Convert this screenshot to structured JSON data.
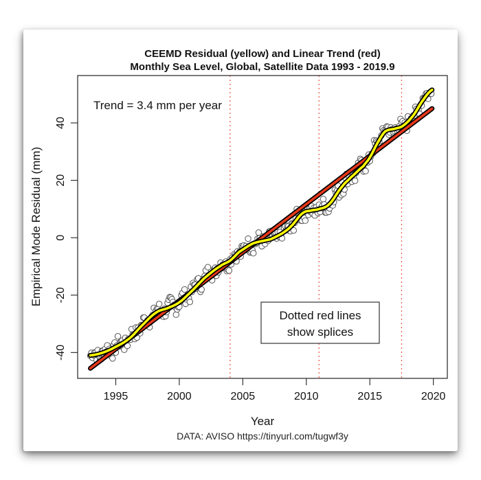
{
  "chart_data": {
    "type": "line",
    "title": "CEEMD Residual (yellow) and Linear Trend (red)",
    "subtitle": "Monthly Sea Level, Global, Satellite Data 1993 - 2019.9",
    "xlabel": "Year",
    "ylabel": "Empirical Mode Residual (mm)",
    "credit": "DATA: AVISO https://tinyurl.com/tugwf3y",
    "annotation": "Trend = 3.4 mm per year",
    "legend_box": [
      "Dotted red lines",
      "show splices"
    ],
    "legend_placement": "bottom-right",
    "xlim": [
      1992,
      2021.1
    ],
    "ylim": [
      -49,
      56.5
    ],
    "x_ticks": [
      1995,
      2000,
      2005,
      2010,
      2015,
      2020
    ],
    "y_ticks": [
      -40,
      -20,
      0,
      20,
      40
    ],
    "grid": false,
    "splices": [
      2004.0,
      2011.0,
      2017.5
    ],
    "series": [
      {
        "name": "CEEMD Residual",
        "color": "#ffff00",
        "x": [
          1993.0,
          1994.0,
          1995.0,
          1996.1,
          1997.2,
          1998.2,
          1999.1,
          2000.0,
          2001.0,
          2002.0,
          2003.2,
          2004.0,
          2004.7,
          2005.8,
          2007.2,
          2008.1,
          2008.8,
          2009.7,
          2010.4,
          2011.0,
          2011.8,
          2012.8,
          2013.5,
          2014.5,
          2015.0,
          2015.6,
          2016.2,
          2017.0,
          2017.6,
          2018.4,
          2019.2,
          2019.9
        ],
        "y": [
          -41,
          -40,
          -38,
          -35,
          -30,
          -26,
          -24.5,
          -22.5,
          -18.5,
          -14,
          -10,
          -8,
          -5,
          -2,
          -0.5,
          1.5,
          4,
          8.5,
          9.5,
          10,
          11.7,
          17.7,
          21,
          25,
          28,
          33,
          37,
          38,
          39,
          42.5,
          48,
          51.5
        ]
      },
      {
        "name": "Linear Trend",
        "color": "#e8381a",
        "x": [
          1993.0,
          2019.9
        ],
        "y": [
          -45.5,
          45
        ]
      }
    ],
    "monthly_observations_note": "open-circle monthly points scattered around the residual curve"
  }
}
